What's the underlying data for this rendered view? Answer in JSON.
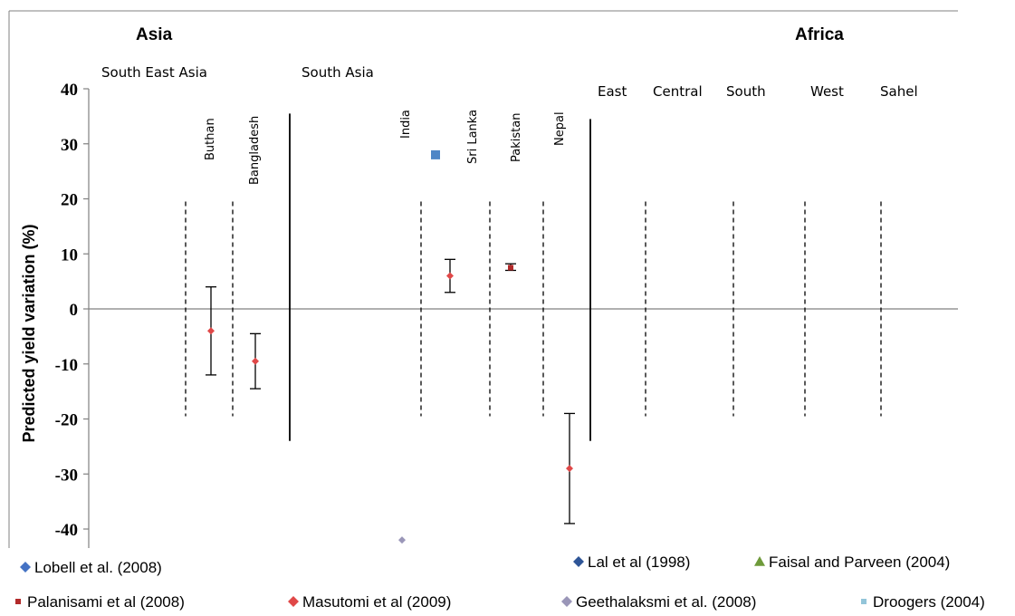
{
  "chart_data": {
    "type": "scatter",
    "title": "",
    "xlabel": "",
    "ylabel": "Predicted yield variation (%)",
    "ylim": [
      -44,
      40
    ],
    "yticks": [
      40,
      30,
      20,
      10,
      0,
      -10,
      -20,
      -30,
      -40
    ],
    "grid": false,
    "legend_position": "bottom",
    "regions": [
      {
        "name": "Asia",
        "subregions": [
          {
            "name": "South East Asia",
            "countries": [
              "Buthan",
              "Bangladesh"
            ]
          },
          {
            "name": "South Asia",
            "countries": [
              "India",
              "Sri Lanka",
              "Pakistan",
              "Nepal"
            ]
          }
        ]
      },
      {
        "name": "Africa",
        "subregions": [
          {
            "name": "East",
            "countries": []
          },
          {
            "name": "Central",
            "countries": []
          },
          {
            "name": "South",
            "countries": []
          },
          {
            "name": "West",
            "countries": []
          },
          {
            "name": "Sahel",
            "countries": []
          }
        ]
      }
    ],
    "series": [
      {
        "name": "Lobell et al. (2008)",
        "marker": "diamond",
        "color": "#4472c4",
        "points": []
      },
      {
        "name": "Lal et al (1998)",
        "marker": "diamond",
        "color": "#2e5597",
        "points": []
      },
      {
        "name": "Faisal and Parveen (2004)",
        "marker": "triangle",
        "color": "#6e9a3a",
        "points": []
      },
      {
        "name": "Palanisami et al (2008)",
        "marker": "square",
        "color": "#b22a2a",
        "points": [
          {
            "country": "Pakistan",
            "y": 7.5,
            "low": 7,
            "high": 8.2
          }
        ]
      },
      {
        "name": "Masutomi et al (2009)",
        "marker": "diamond",
        "color": "#e04848",
        "points": [
          {
            "country": "Buthan",
            "y": -4,
            "low": -12,
            "high": 4
          },
          {
            "country": "Bangladesh",
            "y": -9.5,
            "low": -14.5,
            "high": -4.5
          },
          {
            "country": "Sri Lanka",
            "y": 6,
            "low": 3,
            "high": 9
          },
          {
            "country": "Nepal",
            "y": -29,
            "low": -39,
            "high": -19
          }
        ]
      },
      {
        "name": "Geethalaksmi et al. (2008)",
        "marker": "diamond",
        "color": "#9a96b8",
        "points": [
          {
            "country": "India",
            "y": -42
          }
        ]
      },
      {
        "name": "Droogers (2004)",
        "marker": "square",
        "color": "#93c5d9",
        "points": []
      }
    ],
    "extra_points": [
      {
        "country": "India",
        "y": 28,
        "marker": "square",
        "color": "#4f86c6"
      }
    ]
  },
  "colors": {
    "axis": "#808080",
    "separator": "#000000"
  }
}
